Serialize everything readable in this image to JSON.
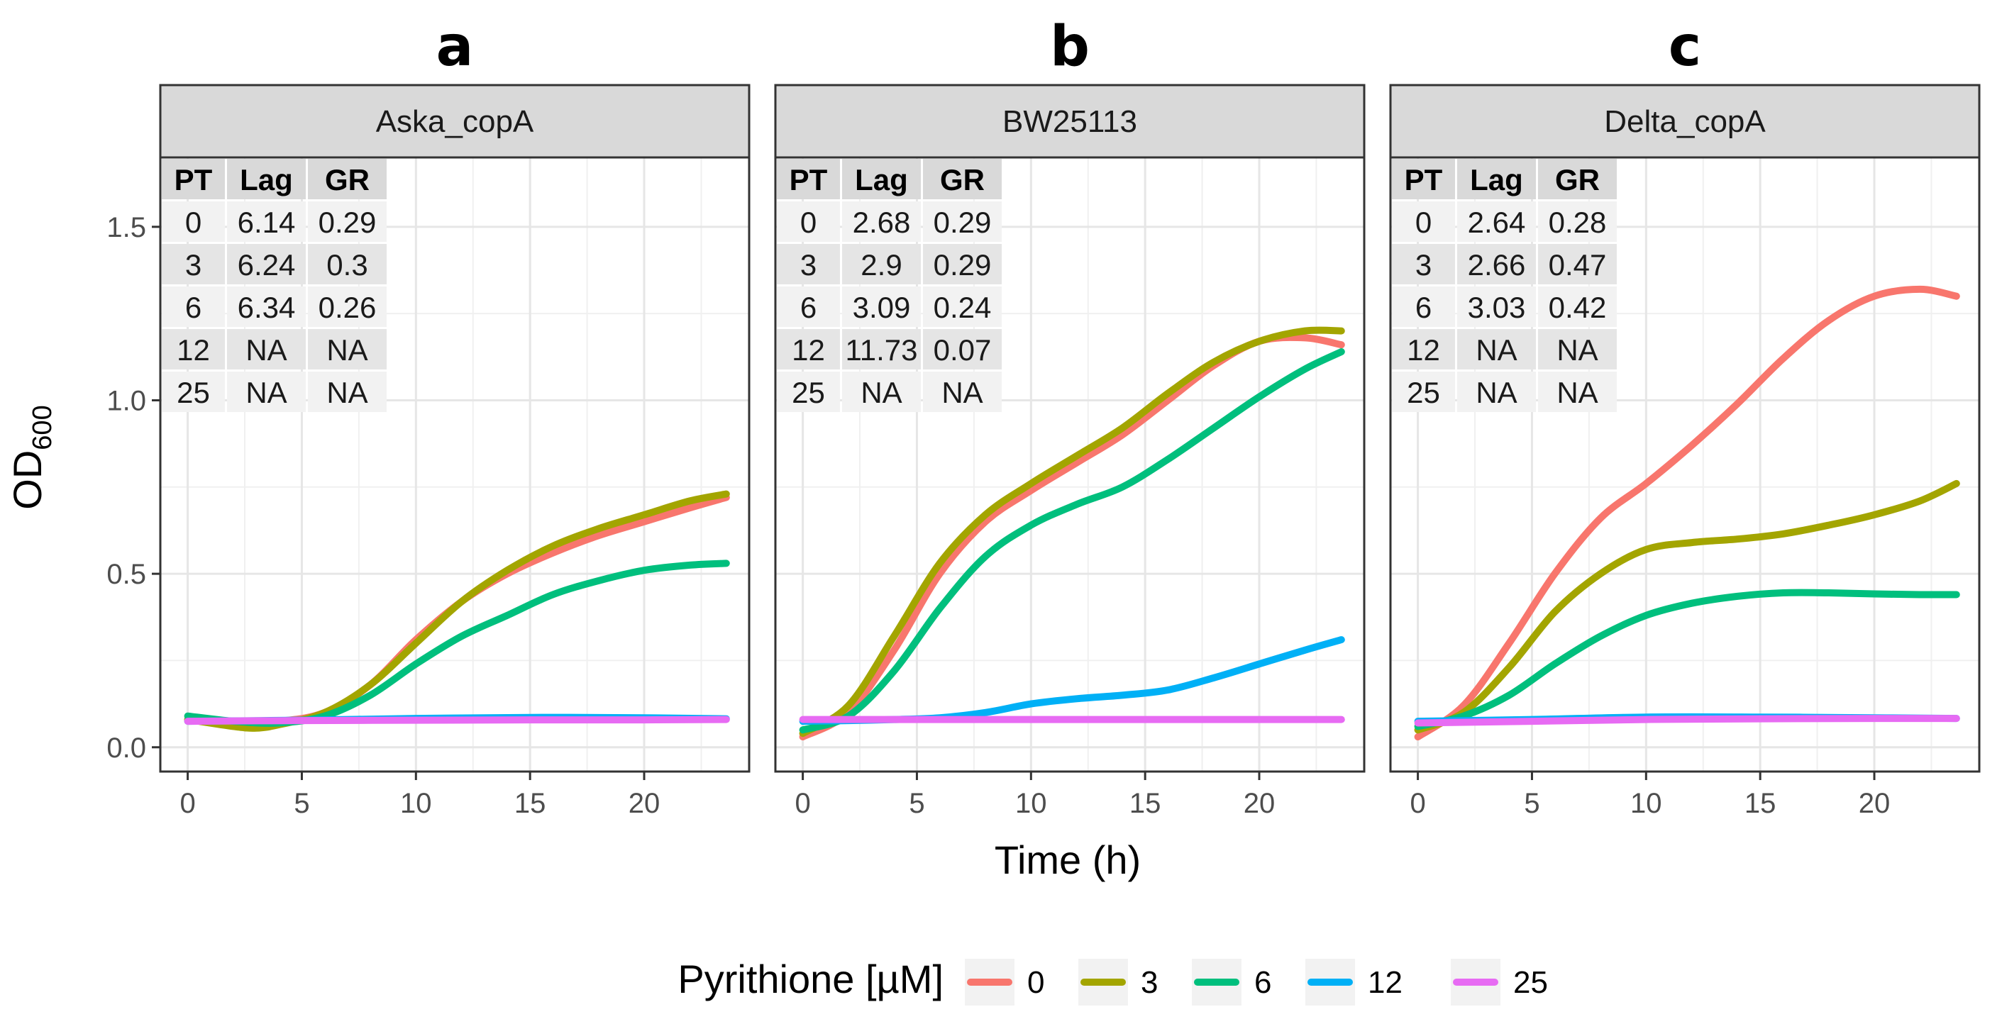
{
  "chart_data": {
    "type": "line",
    "ylabel": "OD",
    "ylabel_sub": "600",
    "xlabel": "Time (h)",
    "xlim": [
      -1.2,
      24.6
    ],
    "ylim": [
      -0.07,
      1.7
    ],
    "x_ticks": [
      0,
      5,
      10,
      15,
      20
    ],
    "y_ticks": [
      0.0,
      0.5,
      1.0,
      1.5
    ],
    "y_tick_labels": [
      "0.0",
      "0.5",
      "1.0",
      "1.5"
    ],
    "grid": true,
    "legend": {
      "title": "Pyrithione [µM]",
      "position": "bottom",
      "entries": [
        {
          "label": "0",
          "color": "#F8766D"
        },
        {
          "label": "3",
          "color": "#A3A500"
        },
        {
          "label": "6",
          "color": "#00BF7D"
        },
        {
          "label": "12",
          "color": "#00B0F6"
        },
        {
          "label": "25",
          "color": "#E76BF3"
        }
      ]
    },
    "panels": [
      {
        "title": "a",
        "strip": "Aska_copA",
        "table": {
          "headers": [
            "PT",
            "Lag",
            "GR"
          ],
          "rows": [
            [
              "0",
              "6.14",
              "0.29"
            ],
            [
              "3",
              "6.24",
              "0.3"
            ],
            [
              "6",
              "6.34",
              "0.26"
            ],
            [
              "12",
              "NA",
              "NA"
            ],
            [
              "25",
              "NA",
              "NA"
            ]
          ]
        },
        "series": [
          {
            "name": "0",
            "x": [
              0,
              2,
              4,
              6,
              8,
              10,
              12,
              14,
              16,
              18,
              20,
              22,
              23.6
            ],
            "y": [
              0.08,
              0.07,
              0.075,
              0.1,
              0.18,
              0.31,
              0.42,
              0.5,
              0.56,
              0.61,
              0.65,
              0.69,
              0.72
            ]
          },
          {
            "name": "3",
            "x": [
              0,
              2,
              3,
              4,
              6,
              8,
              10,
              12,
              14,
              16,
              18,
              20,
              22,
              23.6
            ],
            "y": [
              0.08,
              0.06,
              0.055,
              0.065,
              0.1,
              0.18,
              0.3,
              0.42,
              0.51,
              0.58,
              0.63,
              0.67,
              0.71,
              0.73
            ]
          },
          {
            "name": "6",
            "x": [
              0,
              2,
              4,
              6,
              8,
              10,
              12,
              14,
              16,
              18,
              20,
              22,
              23.6
            ],
            "y": [
              0.09,
              0.075,
              0.07,
              0.09,
              0.15,
              0.24,
              0.32,
              0.38,
              0.44,
              0.48,
              0.51,
              0.525,
              0.53
            ]
          },
          {
            "name": "12",
            "x": [
              0,
              5,
              10,
              15,
              20,
              23.6
            ],
            "y": [
              0.075,
              0.078,
              0.083,
              0.086,
              0.085,
              0.082
            ]
          },
          {
            "name": "25",
            "x": [
              0,
              5,
              10,
              15,
              20,
              23.6
            ],
            "y": [
              0.075,
              0.077,
              0.078,
              0.079,
              0.079,
              0.08
            ]
          }
        ]
      },
      {
        "title": "b",
        "strip": "BW25113",
        "table": {
          "headers": [
            "PT",
            "Lag",
            "GR"
          ],
          "rows": [
            [
              "0",
              "2.68",
              "0.29"
            ],
            [
              "3",
              "2.9",
              "0.29"
            ],
            [
              "6",
              "3.09",
              "0.24"
            ],
            [
              "12",
              "11.73",
              "0.07"
            ],
            [
              "25",
              "NA",
              "NA"
            ]
          ]
        },
        "series": [
          {
            "name": "0",
            "x": [
              0,
              2,
              4,
              6,
              8,
              10,
              12,
              14,
              16,
              18,
              20,
              22,
              23.6
            ],
            "y": [
              0.03,
              0.1,
              0.28,
              0.5,
              0.65,
              0.74,
              0.82,
              0.9,
              1.0,
              1.1,
              1.17,
              1.18,
              1.16
            ]
          },
          {
            "name": "3",
            "x": [
              0,
              2,
              4,
              6,
              8,
              10,
              12,
              14,
              16,
              18,
              20,
              22,
              23.6
            ],
            "y": [
              0.04,
              0.12,
              0.32,
              0.53,
              0.67,
              0.76,
              0.84,
              0.92,
              1.02,
              1.11,
              1.17,
              1.2,
              1.2
            ]
          },
          {
            "name": "6",
            "x": [
              0,
              2,
              4,
              6,
              8,
              10,
              12,
              14,
              16,
              18,
              20,
              22,
              23.6
            ],
            "y": [
              0.05,
              0.09,
              0.22,
              0.4,
              0.55,
              0.64,
              0.7,
              0.75,
              0.83,
              0.92,
              1.01,
              1.09,
              1.14
            ]
          },
          {
            "name": "12",
            "x": [
              0,
              2,
              4,
              6,
              8,
              10,
              12,
              14,
              16,
              18,
              20,
              22,
              23.6
            ],
            "y": [
              0.075,
              0.077,
              0.08,
              0.085,
              0.1,
              0.125,
              0.14,
              0.15,
              0.165,
              0.2,
              0.24,
              0.28,
              0.31
            ]
          },
          {
            "name": "25",
            "x": [
              0,
              5,
              10,
              15,
              20,
              23.6
            ],
            "y": [
              0.08,
              0.08,
              0.08,
              0.08,
              0.08,
              0.08
            ]
          }
        ]
      },
      {
        "title": "c",
        "strip": "Delta_copA",
        "table": {
          "headers": [
            "PT",
            "Lag",
            "GR"
          ],
          "rows": [
            [
              "0",
              "2.64",
              "0.28"
            ],
            [
              "3",
              "2.66",
              "0.47"
            ],
            [
              "6",
              "3.03",
              "0.42"
            ],
            [
              "12",
              "NA",
              "NA"
            ],
            [
              "25",
              "NA",
              "NA"
            ]
          ]
        },
        "series": [
          {
            "name": "0",
            "x": [
              0,
              2,
              4,
              6,
              8,
              10,
              12,
              14,
              16,
              18,
              20,
              22,
              23.6
            ],
            "y": [
              0.03,
              0.12,
              0.3,
              0.5,
              0.66,
              0.76,
              0.87,
              0.99,
              1.12,
              1.23,
              1.3,
              1.32,
              1.3
            ]
          },
          {
            "name": "3",
            "x": [
              0,
              2,
              4,
              6,
              8,
              10,
              12,
              14,
              16,
              18,
              20,
              22,
              23.6
            ],
            "y": [
              0.05,
              0.1,
              0.23,
              0.39,
              0.5,
              0.57,
              0.59,
              0.6,
              0.615,
              0.64,
              0.67,
              0.71,
              0.76
            ]
          },
          {
            "name": "6",
            "x": [
              0,
              2,
              4,
              6,
              8,
              10,
              12,
              14,
              16,
              18,
              20,
              22,
              23.6
            ],
            "y": [
              0.06,
              0.09,
              0.15,
              0.24,
              0.32,
              0.38,
              0.415,
              0.435,
              0.445,
              0.445,
              0.442,
              0.44,
              0.44
            ]
          },
          {
            "name": "12",
            "x": [
              0,
              5,
              10,
              15,
              20,
              23.6
            ],
            "y": [
              0.075,
              0.08,
              0.087,
              0.087,
              0.085,
              0.083
            ]
          },
          {
            "name": "25",
            "x": [
              0,
              5,
              10,
              15,
              20,
              23.6
            ],
            "y": [
              0.07,
              0.075,
              0.08,
              0.082,
              0.083,
              0.083
            ]
          }
        ]
      }
    ]
  }
}
